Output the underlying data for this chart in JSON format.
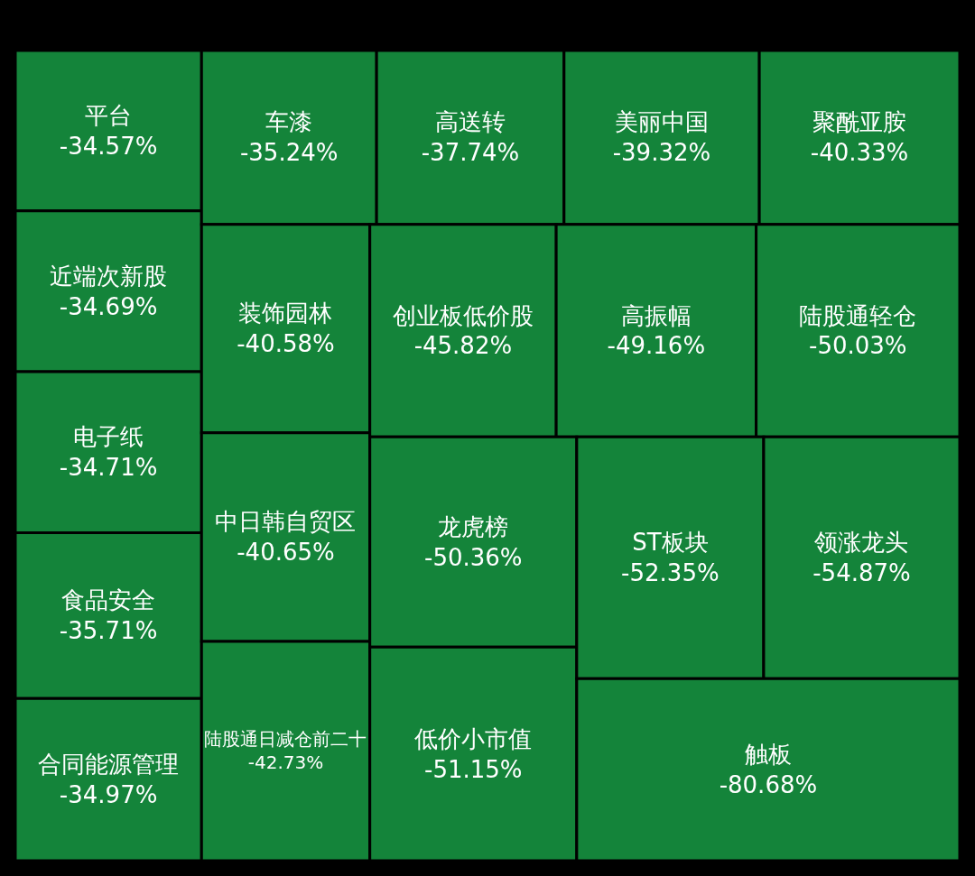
{
  "chart_data": {
    "type": "other",
    "categories": [
      "平台",
      "近端次新股",
      "电子纸",
      "食品安全",
      "合同能源管理",
      "车漆",
      "高送转",
      "美丽中国",
      "聚酰亚胺",
      "装饰园林",
      "中日韩自贸区",
      "陆股通日减仓前二十",
      "创业板低价股",
      "高振幅",
      "陆股通轻仓",
      "龙虎榜",
      "低价小市值",
      "ST板块",
      "领涨龙头",
      "触板"
    ],
    "values": [
      -34.57,
      -34.69,
      -34.71,
      -35.71,
      -34.97,
      -35.24,
      -37.74,
      -39.32,
      -40.33,
      -40.58,
      -40.65,
      -42.73,
      -45.82,
      -49.16,
      -50.03,
      -50.36,
      -51.15,
      -52.35,
      -54.87,
      -80.68
    ],
    "value_labels": [
      "-34.57%",
      "-34.69%",
      "-34.71%",
      "-35.71%",
      "-34.97%",
      "-35.24%",
      "-37.74%",
      "-39.32%",
      "-40.33%",
      "-40.58%",
      "-40.65%",
      "-42.73%",
      "-45.82%",
      "-49.16%",
      "-50.03%",
      "-50.36%",
      "-51.15%",
      "-52.35%",
      "-54.87%",
      "-80.68%"
    ],
    "data_labels": true,
    "color": "#14843a"
  }
}
